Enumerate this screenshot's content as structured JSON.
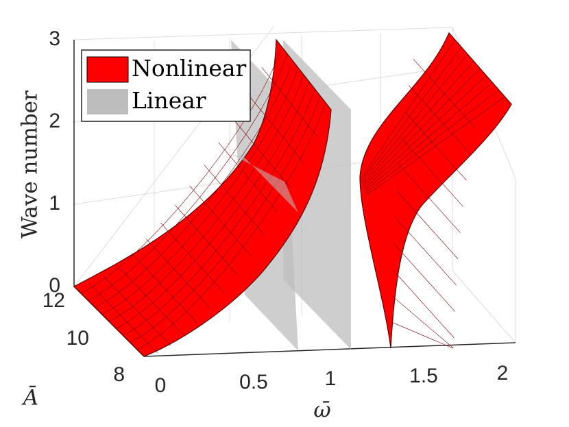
{
  "chart_data": {
    "type": "surface3d",
    "title": "",
    "xlabel": "ω̄",
    "ylabel": "Ā",
    "zlabel": "Wave number",
    "x_ticks": [
      "0",
      "0.5",
      "1",
      "1.5",
      "2"
    ],
    "y_ticks": [
      "8",
      "10",
      "12"
    ],
    "z_ticks": [
      "0",
      "1",
      "2",
      "3"
    ],
    "xlim": [
      0,
      2.15
    ],
    "ylim": [
      8,
      12
    ],
    "zlim": [
      0,
      3
    ],
    "grid": true,
    "legend": {
      "placement": "top-left",
      "entries": [
        {
          "label": "Nonlinear",
          "color": "#ff0000"
        },
        {
          "label": "Linear",
          "color": "#bdbdbd"
        }
      ]
    },
    "series": [
      {
        "name": "Nonlinear",
        "branch": "lower",
        "color": "#ff0000",
        "omega_range": [
          0,
          1.0
        ],
        "amplitude_range": [
          8,
          12
        ],
        "wave_number_at_omega_0": 0,
        "wave_number_at_omega_max": 2.9
      },
      {
        "name": "Nonlinear",
        "branch": "upper",
        "color": "#ff0000",
        "omega_range": [
          1.35,
          2.15
        ],
        "amplitude_range": [
          8,
          12
        ],
        "wave_number_at_omega_min": 0,
        "wave_number_at_omega_max": 3.0
      },
      {
        "name": "Linear",
        "color": "#bdbdbd",
        "omega_bounds": [
          0.85,
          1.05
        ],
        "wave_number_range": [
          0,
          3
        ]
      }
    ]
  }
}
